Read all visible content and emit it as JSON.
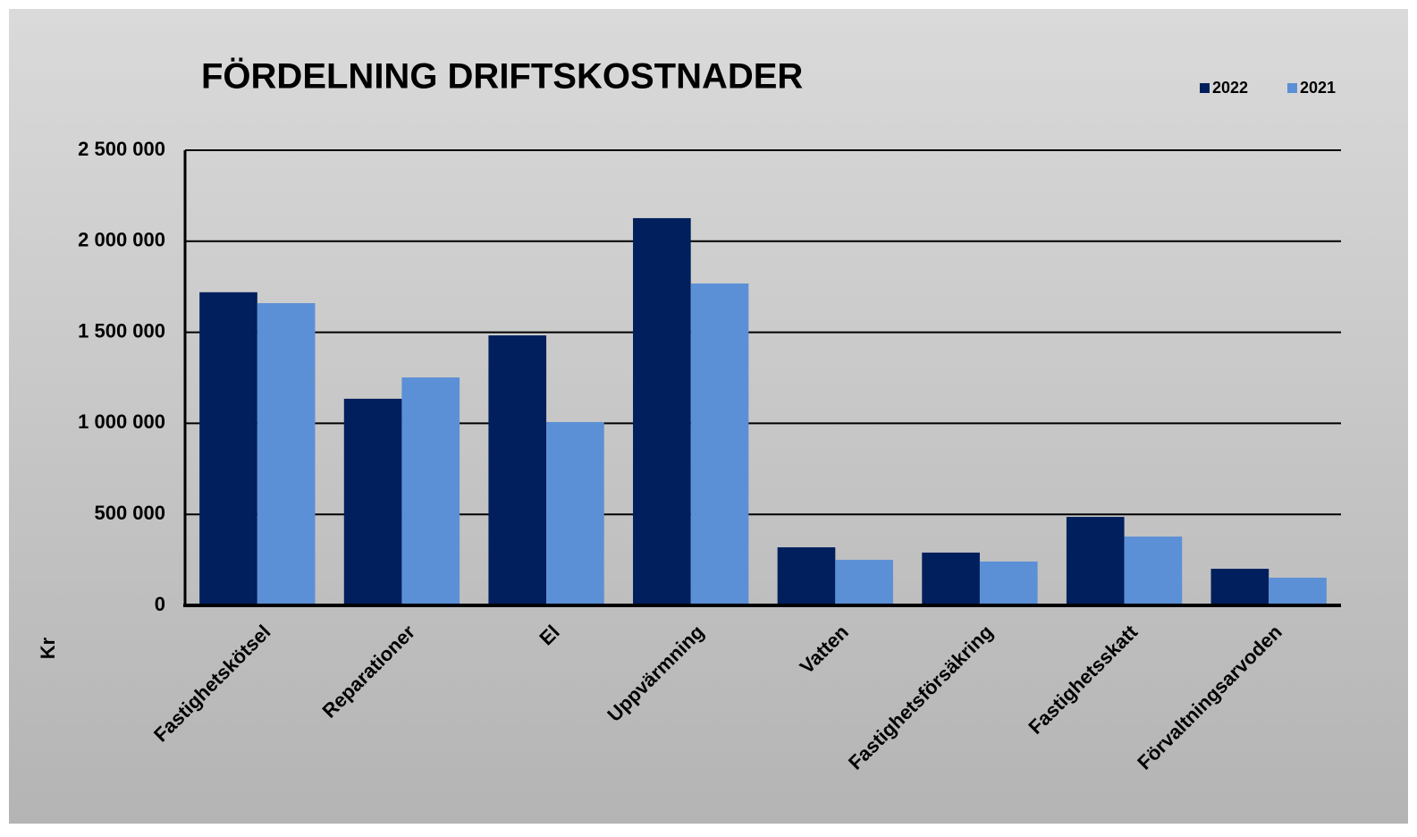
{
  "chart_data": {
    "type": "bar",
    "title": "FÖRDELNING  DRIFTSKOSTNADER",
    "y_label": "Kr",
    "categories": [
      "Fastighetskötsel",
      "Reparationer",
      "El",
      "Uppvärmning",
      "Vatten",
      "Fastighetsförsäkring",
      "Fastighetsskatt",
      "Förvaltningsarvoden"
    ],
    "series": [
      {
        "name": "2022",
        "color": "#001f5c",
        "values": [
          1720000,
          1135000,
          1483000,
          2127000,
          319000,
          290000,
          486000,
          201000
        ]
      },
      {
        "name": "2021",
        "color": "#5b90d6",
        "values": [
          1660000,
          1252000,
          1007000,
          1768000,
          250000,
          241000,
          378000,
          152000
        ]
      }
    ],
    "ylim": [
      0,
      2500000
    ],
    "yticks": [
      0,
      {
        "value": 500000,
        "label": "500 000"
      },
      {
        "value": 1000000,
        "label": "1 000 000"
      },
      {
        "value": 1500000,
        "label": "1 500 000"
      },
      {
        "value": 2000000,
        "label": "2 000 000"
      },
      {
        "value": 2500000,
        "label": "2 500 000"
      }
    ],
    "grid": true,
    "legend": "top-right"
  }
}
